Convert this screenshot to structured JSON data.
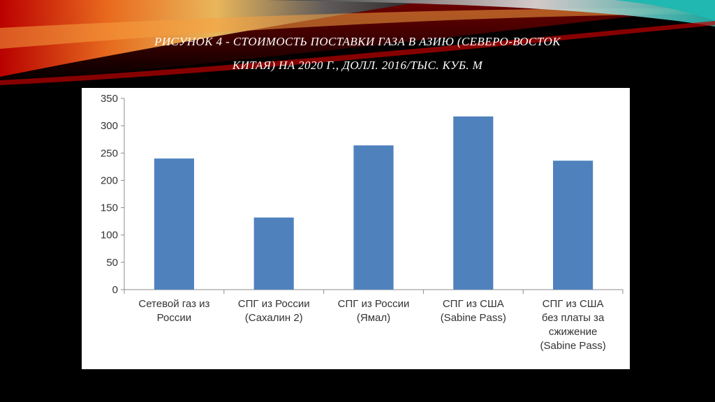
{
  "slide": {
    "title_line1": "РИСУНОК 4 - СТОИМОСТЬ ПОСТАВКИ ГАЗА В АЗИЮ (СЕВЕРО-ВОСТОК",
    "title_line2": "КИТАЯ) НА 2020 Г., ДОЛЛ. 2016/ТЫС. КУБ. М"
  },
  "colors": {
    "background": "#000000",
    "bar": "#4f81bd",
    "axis": "#8c8c8c",
    "deco_red": "#c00000",
    "deco_orange": "#f07020",
    "deco_teal": "#20b8b0"
  },
  "chart_data": {
    "type": "bar",
    "categories": [
      [
        "Сетевой газ из",
        "России"
      ],
      [
        "СПГ из России",
        "(Сахалин 2)"
      ],
      [
        "СПГ из России",
        "(Ямал)"
      ],
      [
        "СПГ из США",
        "(Sabine Pass)"
      ],
      [
        "СПГ из США",
        "без платы за",
        "сжижение",
        "(Sabine Pass)"
      ]
    ],
    "values": [
      240,
      132,
      264,
      317,
      236
    ],
    "ylim": [
      0,
      350
    ],
    "yticks": [
      0,
      50,
      100,
      150,
      200,
      250,
      300,
      350
    ],
    "grid": false,
    "legend": "none"
  }
}
